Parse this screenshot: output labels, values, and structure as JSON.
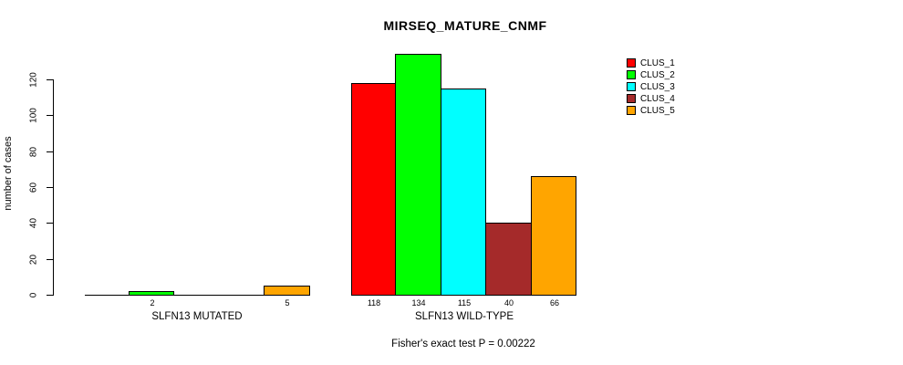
{
  "title": "MIRSEQ_MATURE_CNMF",
  "subtitle": "Fisher's exact test P = 0.00222",
  "ylabel": "number of cases",
  "colors": {
    "background": "#ffffff",
    "axis": "#000000",
    "text": "#000000"
  },
  "chart_data": {
    "type": "bar",
    "grouped": true,
    "title": "MIRSEQ_MATURE_CNMF",
    "xlabel": "",
    "ylabel": "number of cases",
    "categories": [
      "SLFN13 MUTATED",
      "SLFN13 WILD-TYPE"
    ],
    "series": [
      {
        "name": "CLUS_1",
        "color": "#FF0000",
        "values": [
          0,
          118
        ]
      },
      {
        "name": "CLUS_2",
        "color": "#00FF00",
        "values": [
          2,
          134
        ]
      },
      {
        "name": "CLUS_3",
        "color": "#00FFFF",
        "values": [
          0,
          115
        ]
      },
      {
        "name": "CLUS_4",
        "color": "#A52A2A",
        "values": [
          0,
          40
        ]
      },
      {
        "name": "CLUS_5",
        "color": "#FFA500",
        "values": [
          5,
          66
        ]
      }
    ],
    "bar_value_labels": [
      "2",
      "5",
      "118",
      "134",
      "115",
      "40",
      "66"
    ],
    "value_labels_shown_for_zero": false,
    "y_ticks": [
      0,
      20,
      40,
      60,
      80,
      100,
      120
    ],
    "ylim": [
      0,
      140
    ],
    "grid": false,
    "legend_position": "top-right",
    "annotations": [
      "Fisher's exact test P = 0.00222"
    ]
  }
}
